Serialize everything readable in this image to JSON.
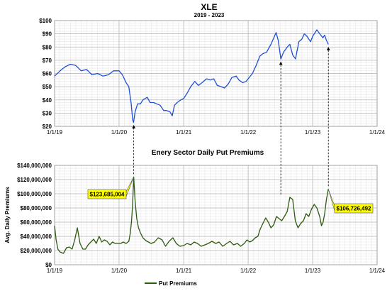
{
  "chart_data": [
    {
      "type": "line",
      "title": "XLE",
      "subtitle": "2019 - 2023",
      "xlabel": "",
      "ylabel": "",
      "x_ticks": [
        "1/1/19",
        "1/1/20",
        "1/1/21",
        "1/1/22",
        "1/1/23",
        "1/1/24"
      ],
      "y_ticks": [
        "$20",
        "$30",
        "$40",
        "$50",
        "$60",
        "$70",
        "$80",
        "$90",
        "$100"
      ],
      "ylim": [
        20,
        100
      ],
      "xlim": [
        "2019-01-01",
        "2024-01-01"
      ],
      "grid": true,
      "color": "#1f4fd6",
      "series": [
        {
          "x": [
            "2019-01-01",
            "2019-02-01",
            "2019-03-01",
            "2019-04-01",
            "2019-05-01",
            "2019-06-01",
            "2019-07-01",
            "2019-08-01",
            "2019-09-01",
            "2019-10-01",
            "2019-11-01",
            "2019-12-01",
            "2020-01-01",
            "2020-01-20",
            "2020-02-10",
            "2020-02-25",
            "2020-03-10",
            "2020-03-18",
            "2020-03-23",
            "2020-04-01",
            "2020-04-15",
            "2020-05-01",
            "2020-05-15",
            "2020-06-08",
            "2020-06-25",
            "2020-07-15",
            "2020-08-01",
            "2020-08-20",
            "2020-09-10",
            "2020-09-25",
            "2020-10-15",
            "2020-10-28",
            "2020-11-10",
            "2020-11-25",
            "2020-12-15",
            "2021-01-01",
            "2021-01-20",
            "2021-02-10",
            "2021-03-05",
            "2021-03-25",
            "2021-04-15",
            "2021-05-10",
            "2021-06-01",
            "2021-06-20",
            "2021-07-10",
            "2021-08-01",
            "2021-08-20",
            "2021-09-10",
            "2021-10-01",
            "2021-10-25",
            "2021-11-10",
            "2021-12-01",
            "2021-12-20",
            "2022-01-01",
            "2022-01-25",
            "2022-02-15",
            "2022-03-08",
            "2022-03-25",
            "2022-04-15",
            "2022-05-10",
            "2022-06-08",
            "2022-06-20",
            "2022-07-05",
            "2022-07-20",
            "2022-08-10",
            "2022-08-25",
            "2022-09-10",
            "2022-09-26",
            "2022-10-15",
            "2022-11-01",
            "2022-11-15",
            "2022-12-01",
            "2022-12-20",
            "2023-01-01",
            "2023-01-25",
            "2023-02-10",
            "2023-02-28",
            "2023-03-10",
            "2023-03-20",
            "2023-03-31"
          ],
          "y": [
            58,
            62,
            65,
            67,
            66,
            62,
            63,
            59,
            60,
            58,
            59,
            62,
            62,
            59,
            53,
            50,
            37,
            25,
            23,
            31,
            37,
            37,
            40,
            42,
            38,
            38,
            37,
            36,
            32,
            32,
            31,
            28,
            36,
            38,
            40,
            41,
            45,
            50,
            54,
            51,
            53,
            56,
            55,
            56,
            51,
            50,
            49,
            52,
            57,
            58,
            55,
            53,
            54,
            56,
            60,
            66,
            73,
            75,
            76,
            82,
            91,
            85,
            71,
            76,
            80,
            82,
            74,
            71,
            84,
            86,
            90,
            88,
            84,
            88,
            93,
            90,
            87,
            89,
            85,
            82
          ]
        }
      ]
    },
    {
      "type": "line",
      "title": "Enery Sector Daily Put Premiums",
      "xlabel": "",
      "ylabel": "Avg. Daily Premiums",
      "x_ticks": [
        "1/1/19",
        "1/1/20",
        "1/1/21",
        "1/1/22",
        "1/1/23",
        "1/1/24"
      ],
      "y_ticks": [
        "$0",
        "$20,000,000",
        "$40,000,000",
        "$60,000,000",
        "$80,000,000",
        "$100,000,000",
        "$120,000,000",
        "$140,000,000"
      ],
      "ylim": [
        0,
        140000000
      ],
      "xlim": [
        "2019-01-01",
        "2024-01-01"
      ],
      "grid": true,
      "legend": "bottom",
      "color": "#2f5a12",
      "annotations": [
        {
          "label": "$123,685,004",
          "x": "2020-03-24",
          "y": 123685004
        },
        {
          "label": "$106,726,492",
          "x": "2023-03-31",
          "y": 106726492
        }
      ],
      "series": [
        {
          "name": "Put Premiums",
          "x": [
            "2019-01-01",
            "2019-01-10",
            "2019-01-20",
            "2019-02-01",
            "2019-02-20",
            "2019-03-10",
            "2019-03-25",
            "2019-04-10",
            "2019-04-25",
            "2019-05-10",
            "2019-05-25",
            "2019-06-10",
            "2019-06-25",
            "2019-07-10",
            "2019-07-25",
            "2019-08-10",
            "2019-08-25",
            "2019-09-10",
            "2019-09-25",
            "2019-10-10",
            "2019-10-25",
            "2019-11-10",
            "2019-11-25",
            "2019-12-10",
            "2019-12-25",
            "2020-01-10",
            "2020-01-25",
            "2020-02-10",
            "2020-02-25",
            "2020-03-05",
            "2020-03-12",
            "2020-03-18",
            "2020-03-24",
            "2020-04-01",
            "2020-04-10",
            "2020-04-20",
            "2020-05-01",
            "2020-05-15",
            "2020-06-01",
            "2020-06-15",
            "2020-07-01",
            "2020-07-20",
            "2020-08-10",
            "2020-09-01",
            "2020-09-20",
            "2020-10-10",
            "2020-11-01",
            "2020-11-20",
            "2020-12-10",
            "2021-01-01",
            "2021-01-20",
            "2021-02-10",
            "2021-03-01",
            "2021-03-20",
            "2021-04-10",
            "2021-05-01",
            "2021-05-20",
            "2021-06-10",
            "2021-07-01",
            "2021-07-20",
            "2021-08-10",
            "2021-09-01",
            "2021-09-20",
            "2021-10-10",
            "2021-11-01",
            "2021-11-20",
            "2021-12-10",
            "2021-12-25",
            "2022-01-10",
            "2022-01-25",
            "2022-02-10",
            "2022-02-25",
            "2022-03-10",
            "2022-03-25",
            "2022-04-10",
            "2022-04-25",
            "2022-05-10",
            "2022-05-25",
            "2022-06-10",
            "2022-06-25",
            "2022-07-10",
            "2022-07-25",
            "2022-08-10",
            "2022-08-25",
            "2022-09-10",
            "2022-09-25",
            "2022-10-10",
            "2022-10-25",
            "2022-11-10",
            "2022-11-25",
            "2022-12-10",
            "2022-12-25",
            "2023-01-10",
            "2023-01-25",
            "2023-02-10",
            "2023-02-20",
            "2023-03-01",
            "2023-03-10",
            "2023-03-20",
            "2023-03-31"
          ],
          "y": [
            55000000,
            35000000,
            22000000,
            18000000,
            16000000,
            24000000,
            25000000,
            22000000,
            35000000,
            52000000,
            30000000,
            22000000,
            22000000,
            28000000,
            32000000,
            36000000,
            30000000,
            40000000,
            32000000,
            35000000,
            33000000,
            28000000,
            32000000,
            30000000,
            30000000,
            30000000,
            32000000,
            30000000,
            33000000,
            45000000,
            62000000,
            85000000,
            123685004,
            90000000,
            65000000,
            52000000,
            45000000,
            38000000,
            34000000,
            32000000,
            30000000,
            32000000,
            38000000,
            35000000,
            26000000,
            33000000,
            38000000,
            30000000,
            26000000,
            27000000,
            30000000,
            28000000,
            32000000,
            30000000,
            26000000,
            28000000,
            30000000,
            33000000,
            30000000,
            32000000,
            26000000,
            30000000,
            33000000,
            28000000,
            30000000,
            26000000,
            30000000,
            35000000,
            32000000,
            34000000,
            38000000,
            40000000,
            50000000,
            58000000,
            66000000,
            60000000,
            52000000,
            56000000,
            68000000,
            65000000,
            62000000,
            68000000,
            75000000,
            95000000,
            92000000,
            62000000,
            52000000,
            58000000,
            62000000,
            72000000,
            68000000,
            78000000,
            85000000,
            80000000,
            68000000,
            55000000,
            60000000,
            72000000,
            92000000,
            106726492
          ]
        }
      ]
    }
  ]
}
